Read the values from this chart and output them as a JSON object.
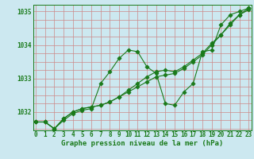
{
  "xlabel": "Graphe pression niveau de la mer (hPa)",
  "hours": [
    0,
    1,
    2,
    3,
    4,
    5,
    6,
    7,
    8,
    9,
    10,
    11,
    12,
    13,
    14,
    15,
    16,
    17,
    18,
    19,
    20,
    21,
    22,
    23
  ],
  "series": [
    [
      1031.7,
      1031.7,
      1031.5,
      1031.75,
      1031.95,
      1032.05,
      1032.1,
      1032.85,
      1033.2,
      1033.6,
      1033.85,
      1033.8,
      1033.35,
      1033.15,
      1032.25,
      1032.2,
      1032.6,
      1032.85,
      1033.8,
      1033.85,
      1034.6,
      1034.9,
      1035.0,
      1035.1
    ],
    [
      1031.7,
      1031.7,
      1031.5,
      1031.8,
      1032.0,
      1032.1,
      1032.15,
      1032.2,
      1032.3,
      1032.45,
      1032.65,
      1032.85,
      1033.05,
      1033.2,
      1033.25,
      1033.2,
      1033.35,
      1033.55,
      1033.75,
      1034.05,
      1034.3,
      1034.65,
      1034.9,
      1035.05
    ],
    [
      1031.7,
      1031.7,
      1031.5,
      1031.8,
      1032.0,
      1032.1,
      1032.15,
      1032.2,
      1032.3,
      1032.45,
      1032.6,
      1032.75,
      1032.9,
      1033.05,
      1033.1,
      1033.15,
      1033.3,
      1033.5,
      1033.7,
      1034.0,
      1034.3,
      1034.6,
      1034.9,
      1035.1
    ]
  ],
  "line_color": "#1a7a1a",
  "marker": "D",
  "bg_color": "#cce8f0",
  "grid_color_v": "#cc8888",
  "grid_color_h": "#cc8888",
  "ylim": [
    1031.45,
    1035.2
  ],
  "yticks": [
    1032,
    1033,
    1034,
    1035
  ],
  "xticks": [
    0,
    1,
    2,
    3,
    4,
    5,
    6,
    7,
    8,
    9,
    10,
    11,
    12,
    13,
    14,
    15,
    16,
    17,
    18,
    19,
    20,
    21,
    22,
    23
  ],
  "tick_fontsize": 5.5,
  "xlabel_fontsize": 6.5
}
